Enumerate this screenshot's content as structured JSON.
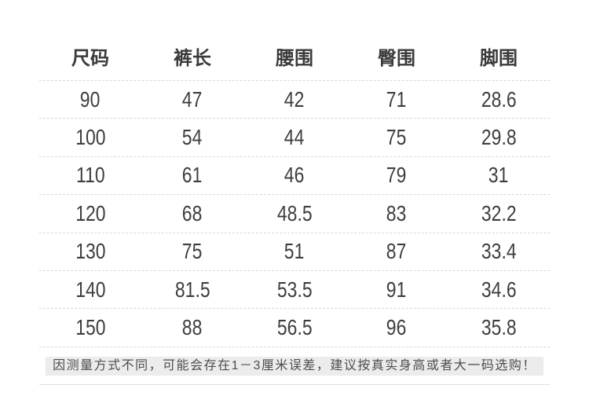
{
  "table": {
    "columns": [
      "尺码",
      "裤长",
      "腰围",
      "臀围",
      "脚围"
    ],
    "rows": [
      [
        "90",
        "47",
        "42",
        "71",
        "28.6"
      ],
      [
        "100",
        "54",
        "44",
        "75",
        "29.8"
      ],
      [
        "110",
        "61",
        "46",
        "79",
        "31"
      ],
      [
        "120",
        "68",
        "48.5",
        "83",
        "32.2"
      ],
      [
        "130",
        "75",
        "51",
        "87",
        "33.4"
      ],
      [
        "140",
        "81.5",
        "53.5",
        "91",
        "34.6"
      ],
      [
        "150",
        "88",
        "56.5",
        "96",
        "35.8"
      ]
    ]
  },
  "note": {
    "text": "因测量方式不同，可能会存在1－3厘米误差，建议按真实身高或者大一码选购！"
  },
  "colors": {
    "header_text": "#3a3a3a",
    "cell_text": "#3e3e3e",
    "divider_dashed": "#d7d7d7",
    "note_background": "#ececec",
    "note_text": "#4d4d4d",
    "bottom_line": "#e0e0e0"
  }
}
